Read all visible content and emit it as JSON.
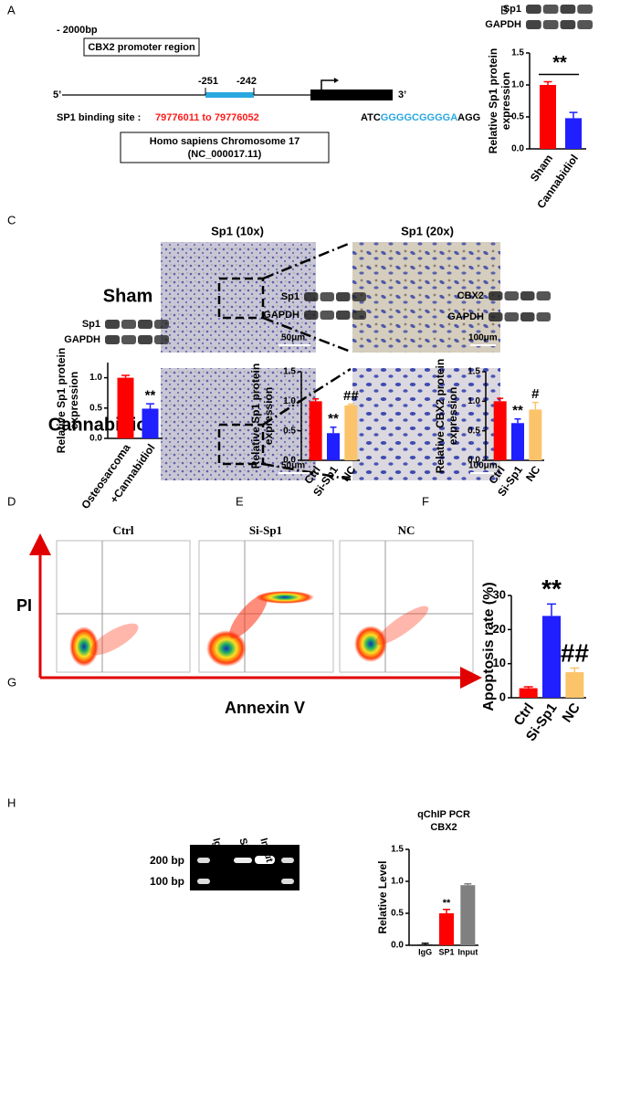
{
  "panels": {
    "letters": [
      "A",
      "B",
      "C",
      "D",
      "E",
      "F",
      "G",
      "H"
    ],
    "A": {
      "length": "- 2000bp",
      "region": "CBX2 promoter region",
      "pos1": "-251",
      "pos2": "-242",
      "end5": "5’",
      "end3": "3’",
      "site_label": "SP1 binding site :",
      "site_range": "79776011 to 79776052",
      "seq_pre": "ATC",
      "seq_core": "GGGGCGGGGA",
      "seq_post": "AGG",
      "chrom": "Homo sapiens Chromosome 17",
      "accession": "(NC_000017.11)"
    },
    "C": {
      "col1": "Sp1 (10x)",
      "col2": "Sp1 (20x)",
      "rows": [
        "Sham",
        "Cannabidiol"
      ],
      "scale_bars": [
        "50μm",
        "100μm",
        "50μm",
        "100μm"
      ]
    },
    "G": {
      "plots": [
        "Ctrl",
        "Si-Sp1",
        "NC"
      ],
      "y_label": "PI",
      "x_label": "Annexin V"
    },
    "H": {
      "lanes": [
        "IgG",
        "SP1",
        "Input"
      ],
      "markers": [
        "200 bp",
        "100 bp"
      ]
    }
  },
  "chart_data": [
    {
      "type": "bar",
      "blot_labels": [
        "Sp1",
        "GAPDH"
      ],
      "y_label": [
        "Relative Sp1 protein",
        "expression"
      ],
      "categories": [
        "Sham",
        "Cannabidiol"
      ],
      "values": [
        1.0,
        0.48
      ],
      "errors": [
        0.05,
        0.09
      ],
      "colors": [
        "#ff0000",
        "#1f1fff"
      ],
      "annotations": [
        null,
        "**"
      ],
      "ylim": [
        0,
        1.5
      ],
      "yticks": [
        {
          "value": 0,
          "label": "0.0"
        },
        0.5,
        {
          "value": 1,
          "label": "1.0"
        },
        1.5
      ]
    },
    {
      "type": "bar",
      "blot_labels": [
        "Sp1",
        "GAPDH"
      ],
      "y_label": [
        "Relative Sp1 protein",
        "expression"
      ],
      "categories": [
        "Osteosarcoma",
        "+Cannabidiol"
      ],
      "values": [
        1.0,
        0.49
      ],
      "errors": [
        0.04,
        0.08
      ],
      "colors": [
        "#ff0000",
        "#1f1fff"
      ],
      "annotations": [
        null,
        "**"
      ],
      "ylim": [
        0,
        1.25
      ],
      "yticks": [
        {
          "value": 0,
          "label": "0.0"
        },
        0.5,
        {
          "value": 1,
          "label": "1.0"
        }
      ]
    },
    {
      "type": "bar",
      "blot_labels": [
        "Sp1",
        "GAPDH"
      ],
      "y_label": [
        "Relative Sp1 protein",
        "expression"
      ],
      "categories": [
        "Ctrl",
        "Si-Sp1",
        "NC"
      ],
      "values": [
        1.0,
        0.46,
        0.93
      ],
      "errors": [
        0.04,
        0.1,
        0.02
      ],
      "colors": [
        "#ff0000",
        "#1f1fff",
        "#fbc46b"
      ],
      "annotations": [
        null,
        "**",
        "##"
      ],
      "ylim": [
        0,
        1.5
      ],
      "yticks": [
        {
          "value": 0,
          "label": "0.0"
        },
        0.5,
        {
          "value": 1,
          "label": "1.0"
        },
        1.5
      ]
    },
    {
      "type": "bar",
      "blot_labels": [
        "CBX2",
        "GAPDH"
      ],
      "y_label": [
        "Relative CBX2 protein",
        "expression"
      ],
      "categories": [
        "Ctrl",
        "Si-Sp1",
        "NC"
      ],
      "values": [
        1.0,
        0.63,
        0.86
      ],
      "errors": [
        0.05,
        0.07,
        0.12
      ],
      "colors": [
        "#ff0000",
        "#1f1fff",
        "#fbc46b"
      ],
      "annotations": [
        null,
        "**",
        "#"
      ],
      "ylim": [
        0,
        1.5
      ],
      "yticks": [
        {
          "value": 0,
          "label": "0.0"
        },
        0.5,
        {
          "value": 1,
          "label": "1.0"
        },
        1.5
      ]
    },
    {
      "type": "bar",
      "y_label": [
        "Apoptosis rate (%)"
      ],
      "categories": [
        "Ctrl",
        "Si-Sp1",
        "NC"
      ],
      "values": [
        2.8,
        24,
        7.5
      ],
      "errors": [
        0.4,
        3.5,
        1.2
      ],
      "colors": [
        "#ff0000",
        "#1f1fff",
        "#fbc46b"
      ],
      "annotations": [
        null,
        "**",
        "##"
      ],
      "ylim": [
        0,
        30
      ],
      "yticks": [
        0,
        10,
        20,
        30
      ]
    },
    {
      "type": "bar",
      "title": [
        "qChIP PCR",
        "CBX2"
      ],
      "y_label": [
        "Relative Level"
      ],
      "categories": [
        "IgG",
        "SP1",
        "Input"
      ],
      "values": [
        0.01,
        0.5,
        0.94
      ],
      "errors": [
        0.02,
        0.06,
        0.02
      ],
      "colors": [
        "#000000",
        "#ff0000",
        "#808080"
      ],
      "annotations": [
        null,
        "**",
        null
      ],
      "ylim": [
        0,
        1.5
      ],
      "yticks": [
        {
          "value": 0,
          "label": "0.0"
        },
        0.5,
        {
          "value": 1,
          "label": "1.0"
        },
        1.5
      ]
    }
  ]
}
